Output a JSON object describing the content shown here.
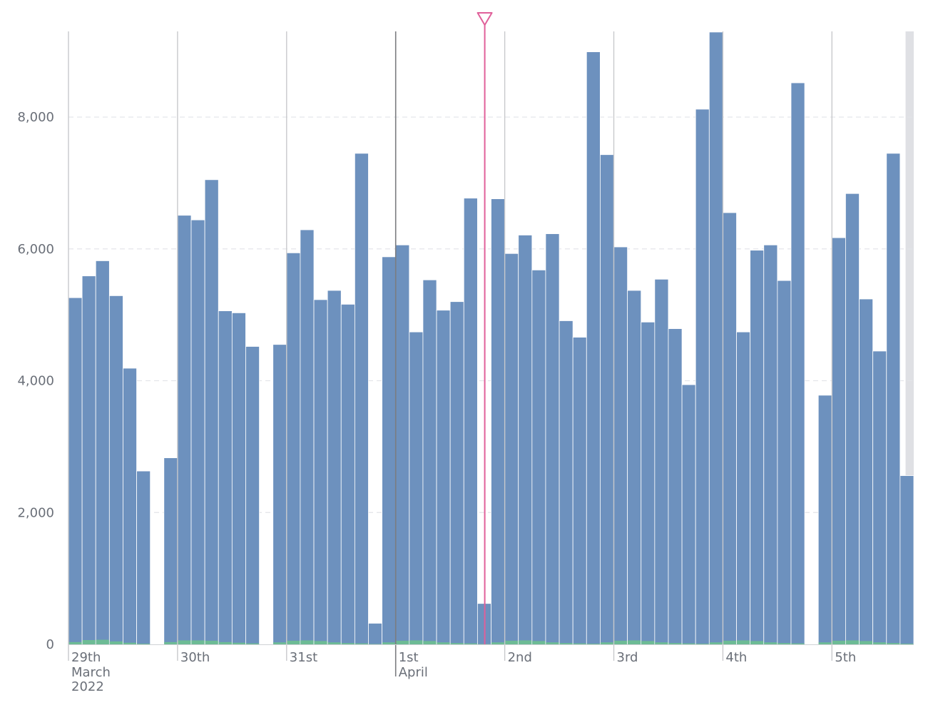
{
  "colors": {
    "primary_series": "#6d91be",
    "secondary_series": "#6dbb95",
    "marker": "#e0609a",
    "gridline": "#e2e4e8",
    "day_line": "#c8c9cc",
    "month_line": "#7b7c80",
    "axis_text": "#6a6f78",
    "shaded": "#dfe0e4"
  },
  "chart_data": {
    "type": "bar",
    "title": "",
    "xlabel": "",
    "ylabel": "",
    "ylim": [
      0,
      9300
    ],
    "yticks": [
      0,
      2000,
      4000,
      6000,
      8000
    ],
    "ytick_labels": [
      "0",
      "2,000",
      "4,000",
      "6,000",
      "8,000"
    ],
    "bucket_hours": 3,
    "x_range_hours": [
      0,
      186
    ],
    "series": [
      {
        "name": "primary",
        "values": [
          5260,
          5590,
          5820,
          5290,
          4190,
          2630,
          null,
          2830,
          6510,
          6440,
          7050,
          5060,
          5030,
          4520,
          null,
          4550,
          5940,
          6290,
          5230,
          5370,
          5160,
          7450,
          320,
          5880,
          6060,
          4740,
          5530,
          5070,
          5200,
          6770,
          620,
          6760,
          5930,
          6210,
          5680,
          6230,
          4910,
          4660,
          8990,
          7430,
          6030,
          5370,
          4890,
          5540,
          4790,
          3940,
          8120,
          9290,
          6550,
          4740,
          5980,
          6060,
          5520,
          8520,
          null,
          3780,
          6170,
          6840,
          5240,
          4450,
          7450,
          2560
        ]
      },
      {
        "name": "secondary",
        "values": [
          35,
          65,
          70,
          45,
          25,
          10,
          null,
          35,
          60,
          60,
          55,
          35,
          25,
          15,
          null,
          30,
          55,
          60,
          50,
          30,
          20,
          15,
          5,
          30,
          55,
          60,
          50,
          30,
          20,
          15,
          5,
          30,
          55,
          60,
          50,
          30,
          20,
          15,
          10,
          30,
          55,
          60,
          50,
          30,
          20,
          15,
          10,
          30,
          55,
          60,
          50,
          30,
          20,
          15,
          null,
          30,
          55,
          60,
          50,
          30,
          20,
          10
        ]
      }
    ],
    "day_ticks": [
      {
        "label": "29th",
        "sub": [
          "March",
          "2022"
        ],
        "hour": 0,
        "major": false
      },
      {
        "label": "30th",
        "sub": [],
        "hour": 24,
        "major": false
      },
      {
        "label": "31st",
        "sub": [],
        "hour": 48,
        "major": false
      },
      {
        "label": "1st",
        "sub": [
          "April"
        ],
        "hour": 72,
        "major": true
      },
      {
        "label": "2nd",
        "sub": [],
        "hour": 96,
        "major": false
      },
      {
        "label": "3rd",
        "sub": [],
        "hour": 120,
        "major": false
      },
      {
        "label": "4th",
        "sub": [],
        "hour": 144,
        "major": false
      },
      {
        "label": "5th",
        "sub": [],
        "hour": 168,
        "major": false
      }
    ],
    "marker_hour": 91.6,
    "shaded_region_hours": [
      184.2,
      186
    ],
    "legend": "none"
  }
}
